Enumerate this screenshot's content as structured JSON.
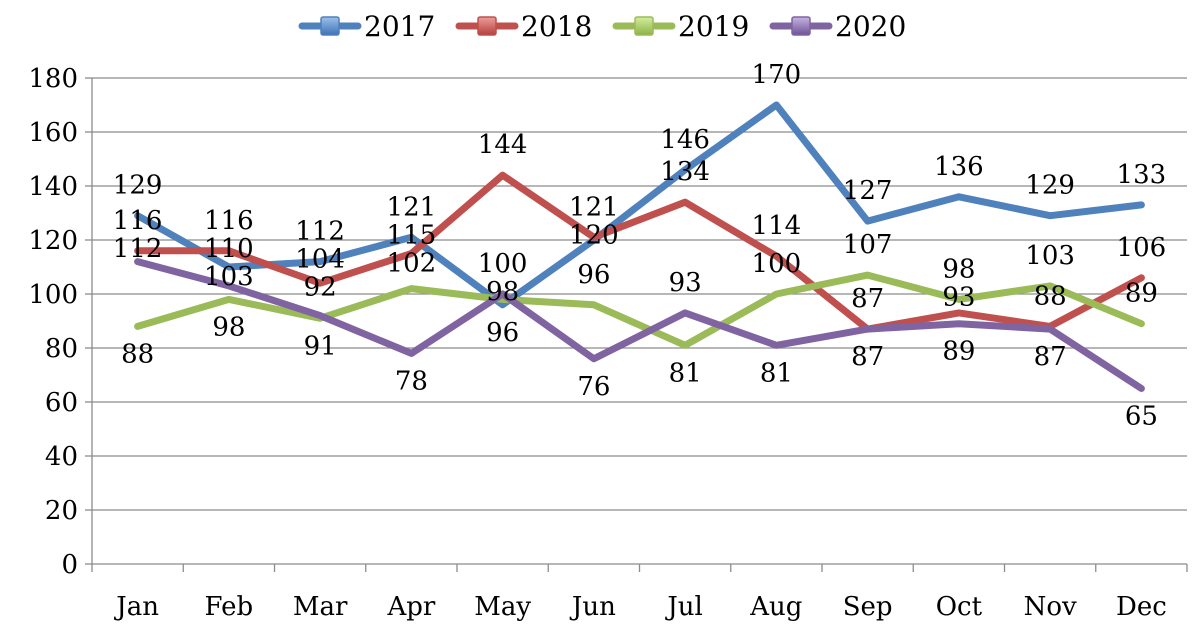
{
  "chart_data": {
    "type": "line",
    "categories": [
      "Jan",
      "Feb",
      "Mar",
      "Apr",
      "May",
      "Jun",
      "Jul",
      "Aug",
      "Sep",
      "Oct",
      "Nov",
      "Dec"
    ],
    "series": [
      {
        "name": "2017",
        "color": "#4F81BD",
        "values": [
          129,
          110,
          112,
          121,
          96,
          120,
          146,
          170,
          127,
          136,
          129,
          133
        ]
      },
      {
        "name": "2018",
        "color": "#C0504D",
        "values": [
          116,
          116,
          104,
          115,
          144,
          121,
          134,
          114,
          87,
          93,
          88,
          106
        ]
      },
      {
        "name": "2019",
        "color": "#9BBB59",
        "values": [
          88,
          98,
          91,
          102,
          98,
          96,
          81,
          100,
          107,
          98,
          103,
          89
        ]
      },
      {
        "name": "2020",
        "color": "#8064A2",
        "values": [
          112,
          103,
          92,
          78,
          100,
          76,
          93,
          81,
          87,
          89,
          87,
          65
        ]
      }
    ],
    "ylim": [
      0,
      180
    ],
    "yticks": [
      0,
      20,
      40,
      60,
      80,
      100,
      120,
      140,
      160,
      180
    ],
    "grid": true,
    "legend_position": "top",
    "data_labels": [
      {
        "text": "129",
        "x": "Jan",
        "y": 129
      },
      {
        "text": "116",
        "x": "Jan",
        "y": 116
      },
      {
        "text": "112",
        "x": "Jan",
        "y": 112
      },
      {
        "text": "88",
        "x": "Jan",
        "y": 88
      },
      {
        "text": "116",
        "x": "Feb",
        "y": 116
      },
      {
        "text": "110",
        "x": "Feb",
        "y": 110
      },
      {
        "text": "103",
        "x": "Feb",
        "y": 103
      },
      {
        "text": "98",
        "x": "Feb",
        "y": 98
      },
      {
        "text": "112",
        "x": "Mar",
        "y": 112
      },
      {
        "text": "104",
        "x": "Mar",
        "y": 104
      },
      {
        "text": "92",
        "x": "Mar",
        "y": 92
      },
      {
        "text": "91",
        "x": "Mar",
        "y": 91
      },
      {
        "text": "121",
        "x": "Apr",
        "y": 121
      },
      {
        "text": "115",
        "x": "Apr",
        "y": 115
      },
      {
        "text": "102",
        "x": "Apr",
        "y": 102
      },
      {
        "text": "78",
        "x": "Apr",
        "y": 78
      },
      {
        "text": "144",
        "x": "May",
        "y": 144
      },
      {
        "text": "100",
        "x": "May",
        "y": 100
      },
      {
        "text": "98",
        "x": "May",
        "y": 98
      },
      {
        "text": "96",
        "x": "May",
        "y": 96
      },
      {
        "text": "121",
        "x": "Jun",
        "y": 121
      },
      {
        "text": "120",
        "x": "Jun",
        "y": 120
      },
      {
        "text": "96",
        "x": "Jun",
        "y": 96
      },
      {
        "text": "76",
        "x": "Jun",
        "y": 76
      },
      {
        "text": "146",
        "x": "Jul",
        "y": 146
      },
      {
        "text": "134",
        "x": "Jul",
        "y": 134
      },
      {
        "text": "93",
        "x": "Jul",
        "y": 93
      },
      {
        "text": "81",
        "x": "Jul",
        "y": 81
      },
      {
        "text": "170",
        "x": "Aug",
        "y": 170
      },
      {
        "text": "114",
        "x": "Aug",
        "y": 114
      },
      {
        "text": "100",
        "x": "Aug",
        "y": 100
      },
      {
        "text": "81",
        "x": "Aug",
        "y": 81
      },
      {
        "text": "127",
        "x": "Sep",
        "y": 127
      },
      {
        "text": "107",
        "x": "Sep",
        "y": 107
      },
      {
        "text": "87",
        "x": "Sep",
        "y": 87
      },
      {
        "text": "87",
        "x": "Sep",
        "y": 87
      },
      {
        "text": "136",
        "x": "Oct",
        "y": 136
      },
      {
        "text": "98",
        "x": "Oct",
        "y": 98
      },
      {
        "text": "93",
        "x": "Oct",
        "y": 93
      },
      {
        "text": "89",
        "x": "Oct",
        "y": 89
      },
      {
        "text": "129",
        "x": "Nov",
        "y": 129
      },
      {
        "text": "103",
        "x": "Nov",
        "y": 103
      },
      {
        "text": "88",
        "x": "Nov",
        "y": 88
      },
      {
        "text": "87",
        "x": "Nov",
        "y": 87
      },
      {
        "text": "133",
        "x": "Dec",
        "y": 133
      },
      {
        "text": "106",
        "x": "Dec",
        "y": 106
      },
      {
        "text": "89",
        "x": "Dec",
        "y": 89
      },
      {
        "text": "65",
        "x": "Dec",
        "y": 65
      }
    ]
  }
}
